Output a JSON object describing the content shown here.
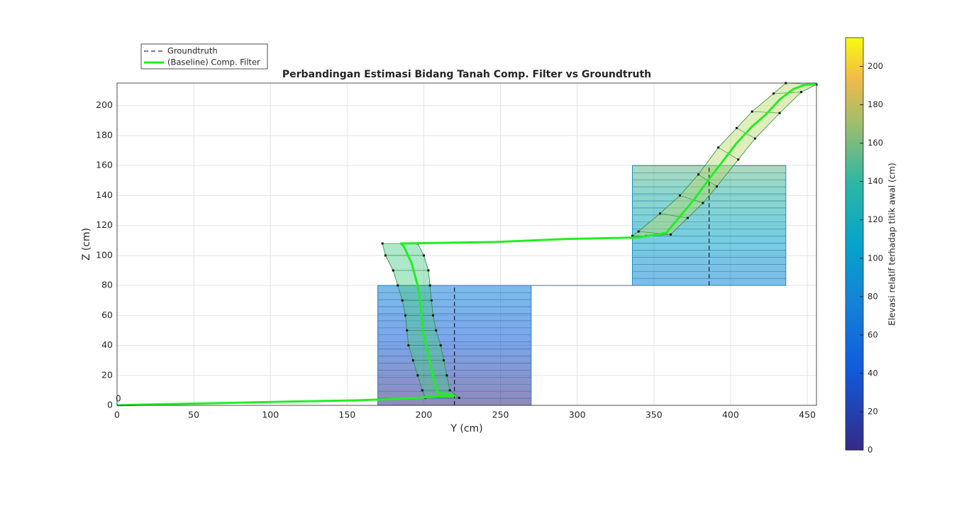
{
  "chart_data": {
    "type": "line",
    "title": "Perbandingan Estimasi Bidang Tanah Comp. Filter vs Groundtruth",
    "x_label": "Y (cm)",
    "y_label": "Z (cm)",
    "xlim": [
      0,
      456
    ],
    "ylim": [
      0,
      215
    ],
    "xticks": [
      0,
      50,
      100,
      150,
      200,
      250,
      300,
      350,
      400,
      450
    ],
    "yticks": [
      0,
      20,
      40,
      60,
      80,
      100,
      120,
      140,
      160,
      180,
      200
    ],
    "grid": true,
    "legend_position": "top-left",
    "annotation": {
      "text": "0",
      "x": 0,
      "y": 0
    },
    "series": [
      {
        "name": "Groundtruth",
        "color": "#000000",
        "dash": true,
        "x": [
          220,
          220,
          220,
          386,
          386
        ],
        "values": [
          0,
          80,
          null,
          80,
          160
        ]
      },
      {
        "name": "(Baseline) Comp. Filter",
        "color": "#22ee22",
        "x": [
          0,
          16,
          62,
          108,
          155,
          183,
          206,
          220,
          209,
          206,
          203,
          199,
          198,
          196,
          192,
          187,
          185,
          247,
          293,
          340,
          358,
          367,
          376,
          386,
          395,
          404,
          414,
          423,
          432,
          441,
          449,
          456
        ],
        "values": [
          0,
          0.5,
          1.4,
          2.4,
          3.3,
          4.3,
          5.7,
          6.6,
          8.5,
          19,
          33,
          52,
          66,
          80,
          95,
          106,
          108,
          109,
          111,
          112,
          115,
          126,
          137,
          151,
          163,
          175,
          186,
          194,
          204,
          211,
          214,
          214
        ]
      }
    ],
    "ground_boxes": [
      {
        "y": [
          170,
          270
        ],
        "z": [
          0,
          80
        ]
      },
      {
        "y": [
          336,
          436
        ],
        "z": [
          80,
          160
        ]
      }
    ],
    "ribbons": [
      {
        "left": {
          "x": [
            173,
            175,
            180,
            183,
            186,
            188,
            189,
            190,
            193,
            196,
            199,
            201
          ],
          "values": [
            108,
            100,
            90,
            80,
            70,
            60,
            50,
            40,
            30,
            20,
            10,
            5
          ]
        },
        "right": {
          "x": [
            196,
            200,
            203,
            204,
            205,
            206,
            208,
            211,
            213,
            215,
            217,
            223
          ],
          "values": [
            108,
            100,
            90,
            80,
            70,
            60,
            50,
            40,
            30,
            20,
            10,
            5
          ]
        }
      },
      {
        "left": {
          "x": [
            336,
            340,
            354,
            367,
            379,
            392,
            404,
            414,
            428,
            436
          ],
          "values": [
            113,
            116,
            128,
            140,
            154,
            172,
            185,
            196,
            208,
            215
          ]
        },
        "right": {
          "x": [
            345,
            361,
            372,
            382,
            391,
            405,
            416,
            432,
            446,
            456
          ],
          "values": [
            113,
            114,
            125,
            135,
            146,
            164,
            178,
            195,
            209,
            214
          ]
        }
      }
    ],
    "colorbar": {
      "label": "Elevasi relatif terhadap titik awal (cm)",
      "lim": [
        0,
        215
      ],
      "ticks": [
        0,
        20,
        40,
        60,
        80,
        100,
        120,
        140,
        160,
        180,
        200
      ]
    }
  }
}
